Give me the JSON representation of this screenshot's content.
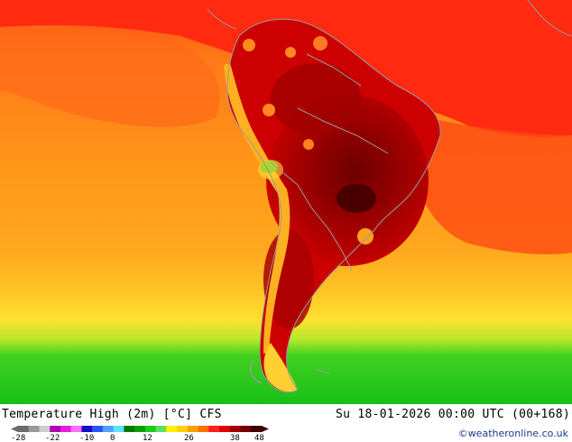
{
  "map": {
    "variable_title": "Temperature High (2m) [°C] CFS",
    "valid_time": "Su 18-01-2026 00:00 UTC (00+168)",
    "credit": "©weatheronline.co.uk",
    "colors": {
      "ocean_warm": "#ff9a1a",
      "ocean_mid": "#ffb020",
      "tropics_red": "#ff1a1a",
      "land_hot": "#c40000",
      "land_extreme": "#6e0000",
      "southern_yellow": "#ffe030",
      "southern_green": "#22cc22",
      "coastline": "#9a9a9a"
    }
  },
  "legend": {
    "ticks": [
      "-28",
      "-22",
      "-10",
      "0",
      "12",
      "26",
      "38",
      "48"
    ],
    "colors": [
      "#6a6a6a",
      "#9a9a9a",
      "#cdcdcd",
      "#b000b0",
      "#e020e0",
      "#ff70ff",
      "#1010c0",
      "#3050ff",
      "#50a0ff",
      "#60e0ff",
      "#007800",
      "#00a000",
      "#20c820",
      "#60e060",
      "#fff000",
      "#ffd000",
      "#ffa000",
      "#ff7000",
      "#ff2020",
      "#e00000",
      "#a00000",
      "#700000",
      "#400000"
    ]
  }
}
